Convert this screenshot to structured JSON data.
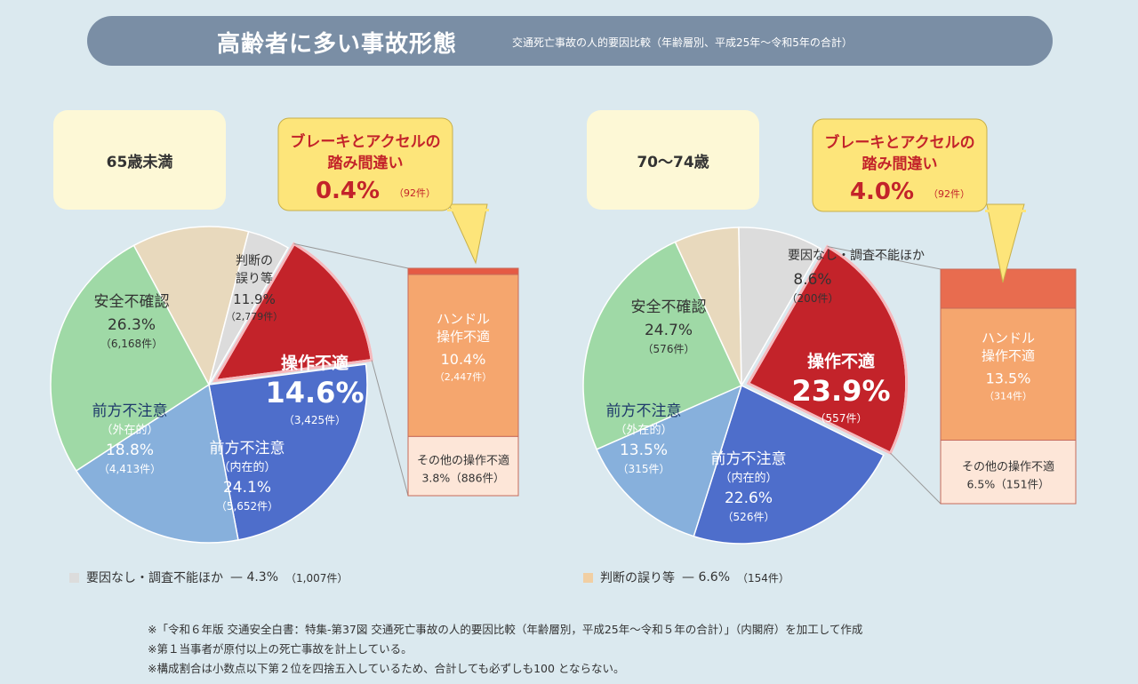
{
  "header": {
    "title": "高齢者に多い事故形態",
    "subtitle": "交通死亡事故の人的要因比較（年齢層別、平成25年～令和5年の合計）"
  },
  "chart_data": [
    {
      "type": "pie",
      "title": "65歳未満",
      "callout": {
        "line1": "ブレーキとアクセルの",
        "line2": "踏み間違い",
        "value": "0.4%",
        "count": "（92件）"
      },
      "slices": [
        {
          "key": "sousa",
          "label": "操作不適",
          "pct": 14.6,
          "value_text": "14.6%",
          "count_text": "（3,425件）",
          "color": "#c3232a"
        },
        {
          "key": "naizai",
          "label": "前方不注意",
          "sublabel": "（内在的）",
          "pct": 24.1,
          "value_text": "24.1%",
          "count_text": "（5,652件）",
          "color": "#4e6ecb"
        },
        {
          "key": "gaizai",
          "label": "前方不注意",
          "sublabel": "（外在的）",
          "pct": 18.8,
          "value_text": "18.8%",
          "count_text": "（4,413件）",
          "color": "#87b0dc"
        },
        {
          "key": "anzen",
          "label": "安全不確認",
          "pct": 26.3,
          "value_text": "26.3%",
          "count_text": "（6,168件）",
          "color": "#9fd9a6"
        },
        {
          "key": "handan",
          "label": "判断の",
          "label2": "誤り等",
          "pct": 11.9,
          "value_text": "11.9%",
          "count_text": "（2,779件）",
          "color": "#e8d9bd"
        },
        {
          "key": "youin",
          "label": "",
          "pct": 4.3,
          "value_text": "",
          "count_text": "",
          "color": "#dcdcdc"
        }
      ],
      "breakdown": [
        {
          "key": "fumi",
          "pct": 0.4,
          "label": "",
          "value_text": "",
          "count_text": "",
          "color": "#e55a44"
        },
        {
          "key": "handle",
          "pct": 10.4,
          "label": "ハンドル",
          "label2": "操作不適",
          "value_text": "10.4%",
          "count_text": "（2,447件）",
          "color": "#f5a66e"
        },
        {
          "key": "other",
          "pct": 3.8,
          "label": "その他の操作不適",
          "value_text": "3.8%（886件）",
          "count_text": "",
          "color": "#fde6d8"
        }
      ],
      "legend": {
        "label": "要因なし・調査不能ほか",
        "value": "— 4.3%",
        "count": "（1,007件）",
        "color": "#dcdcdc"
      }
    },
    {
      "type": "pie",
      "title": "70～74歳",
      "callout": {
        "line1": "ブレーキとアクセルの",
        "line2": "踏み間違い",
        "value": "4.0%",
        "count": "（92件）"
      },
      "slices": [
        {
          "key": "sousa",
          "label": "操作不適",
          "pct": 23.9,
          "value_text": "23.9%",
          "count_text": "（557件）",
          "color": "#c3232a"
        },
        {
          "key": "naizai",
          "label": "前方不注意",
          "sublabel": "（内在的）",
          "pct": 22.6,
          "value_text": "22.6%",
          "count_text": "（526件）",
          "color": "#4e6ecb"
        },
        {
          "key": "gaizai",
          "label": "前方不注意",
          "sublabel": "（外在的）",
          "pct": 13.5,
          "value_text": "13.5%",
          "count_text": "（315件）",
          "color": "#87b0dc"
        },
        {
          "key": "anzen",
          "label": "安全不確認",
          "pct": 24.7,
          "value_text": "24.7%",
          "count_text": "（576件）",
          "color": "#9fd9a6"
        },
        {
          "key": "handan",
          "label": "",
          "pct": 6.6,
          "value_text": "",
          "count_text": "",
          "color": "#e8d9bd"
        },
        {
          "key": "youin",
          "label": "要因なし・調査不能ほか",
          "pct": 8.6,
          "value_text": "8.6%",
          "count_text": "（200件）",
          "color": "#dcdcdc"
        }
      ],
      "breakdown": [
        {
          "key": "fumi",
          "pct": 4.0,
          "label": "",
          "value_text": "",
          "count_text": "",
          "color": "#e86c4f"
        },
        {
          "key": "handle",
          "pct": 13.5,
          "label": "ハンドル",
          "label2": "操作不適",
          "value_text": "13.5%",
          "count_text": "（314件）",
          "color": "#f5a66e"
        },
        {
          "key": "other",
          "pct": 6.5,
          "label": "その他の操作不適",
          "value_text": "6.5%（151件）",
          "count_text": "",
          "color": "#fde6d8"
        }
      ],
      "legend": {
        "label": "判断の誤り等",
        "value": "— 6.6%",
        "count": "（154件）",
        "color": "#f1cfa3"
      }
    }
  ],
  "footer": [
    "※「令和６年版 交通安全白書：特集-第37図 交通死亡事故の人的要因比較（年齢層別，平成25年～令和５年の合計）」（内閣府）を加工して作成",
    "※第１当事者が原付以上の死亡事故を計上している。",
    "※構成割合は小数点以下第２位を四捨五入しているため、合計しても必ずしも100 とならない。"
  ]
}
